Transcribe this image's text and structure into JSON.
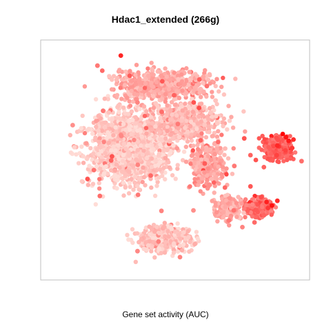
{
  "chart_data": {
    "type": "scatter",
    "title": "Hdac1_extended (266g)",
    "xlabel": "Gene set activity (AUC)",
    "ylabel": "",
    "grid": false,
    "legend": "none",
    "colors": {
      "low": "#ffdcd6",
      "high": "#ff0000",
      "frame": "#bfbfbf"
    },
    "color_scale": "activity 0 (pale pink) to 1 (red)",
    "series": [
      {
        "points": [
          [
            0.298,
            0.935,
            0.83
          ],
          [
            0.211,
            0.893,
            0.45
          ],
          [
            0.229,
            0.872,
            0.52
          ],
          [
            0.331,
            0.851,
            0.58
          ],
          [
            0.452,
            0.828,
            0.6
          ],
          [
            0.59,
            0.835,
            0.55
          ],
          [
            0.618,
            0.808,
            0.48
          ],
          [
            0.569,
            0.74,
            0.62
          ],
          [
            0.589,
            0.717,
            0.66
          ],
          [
            0.496,
            0.77,
            0.55
          ],
          [
            0.36,
            0.74,
            0.4
          ],
          [
            0.232,
            0.705,
            0.45
          ],
          [
            0.119,
            0.645,
            0.35
          ],
          [
            0.265,
            0.515,
            0.62
          ],
          [
            0.262,
            0.498,
            0.55
          ],
          [
            0.198,
            0.458,
            0.48
          ],
          [
            0.174,
            0.421,
            0.62
          ],
          [
            0.22,
            0.35,
            0.5
          ],
          [
            0.361,
            0.48,
            0.4
          ],
          [
            0.409,
            0.435,
            0.52
          ],
          [
            0.362,
            0.355,
            0.45
          ],
          [
            0.449,
            0.288,
            0.4
          ],
          [
            0.568,
            0.29,
            0.35
          ],
          [
            0.438,
            0.16,
            0.42
          ],
          [
            0.36,
            0.12,
            0.38
          ],
          [
            0.518,
            0.095,
            0.4
          ],
          [
            0.595,
            0.582,
            0.55
          ],
          [
            0.61,
            0.485,
            0.58
          ],
          [
            0.66,
            0.575,
            0.5
          ],
          [
            0.72,
            0.475,
            0.45
          ],
          [
            0.685,
            0.385,
            0.52
          ],
          [
            0.718,
            0.29,
            0.48
          ],
          [
            0.757,
            0.59,
            0.62
          ],
          [
            0.78,
            0.52,
            0.55
          ],
          [
            0.78,
            0.39,
            0.6
          ],
          [
            0.866,
            0.558,
            0.65
          ],
          [
            0.878,
            0.52,
            0.7
          ],
          [
            0.9,
            0.608,
            1.0
          ],
          [
            0.912,
            0.595,
            0.92
          ],
          [
            0.922,
            0.58,
            0.88
          ],
          [
            0.94,
            0.585,
            0.8
          ],
          [
            0.935,
            0.55,
            0.75
          ],
          [
            0.88,
            0.56,
            0.82
          ],
          [
            0.91,
            0.54,
            0.7
          ],
          [
            0.8,
            0.5,
            0.62
          ],
          [
            0.83,
            0.47,
            0.55
          ],
          [
            0.97,
            0.495,
            0.5
          ],
          [
            0.82,
            0.345,
            0.65
          ],
          [
            0.84,
            0.325,
            0.85
          ],
          [
            0.86,
            0.31,
            0.92
          ],
          [
            0.88,
            0.33,
            0.8
          ],
          [
            0.845,
            0.3,
            0.75
          ],
          [
            0.802,
            0.29,
            0.6
          ],
          [
            0.83,
            0.27,
            0.55
          ],
          [
            0.795,
            0.24,
            0.52
          ],
          [
            0.7,
            0.248,
            0.45
          ],
          [
            0.75,
            0.22,
            0.4
          ],
          [
            0.51,
            0.65,
            0.45
          ],
          [
            0.45,
            0.7,
            0.5
          ],
          [
            0.3,
            0.6,
            0.38
          ]
        ]
      }
    ],
    "background_clusters": [
      {
        "x": 0.33,
        "y": 0.56,
        "sx": 0.2,
        "sy": 0.19,
        "n": 1500,
        "level": 0.08
      },
      {
        "x": 0.46,
        "y": 0.81,
        "sx": 0.23,
        "sy": 0.08,
        "n": 600,
        "level": 0.22
      },
      {
        "x": 0.54,
        "y": 0.66,
        "sx": 0.16,
        "sy": 0.1,
        "n": 500,
        "level": 0.15
      },
      {
        "x": 0.62,
        "y": 0.48,
        "sx": 0.08,
        "sy": 0.12,
        "n": 300,
        "level": 0.25
      },
      {
        "x": 0.46,
        "y": 0.17,
        "sx": 0.12,
        "sy": 0.07,
        "n": 450,
        "level": 0.1
      },
      {
        "x": 0.88,
        "y": 0.545,
        "sx": 0.06,
        "sy": 0.06,
        "n": 320,
        "level": 0.55
      },
      {
        "x": 0.81,
        "y": 0.3,
        "sx": 0.065,
        "sy": 0.05,
        "n": 300,
        "level": 0.5
      },
      {
        "x": 0.7,
        "y": 0.3,
        "sx": 0.06,
        "sy": 0.06,
        "n": 200,
        "level": 0.22
      }
    ]
  }
}
